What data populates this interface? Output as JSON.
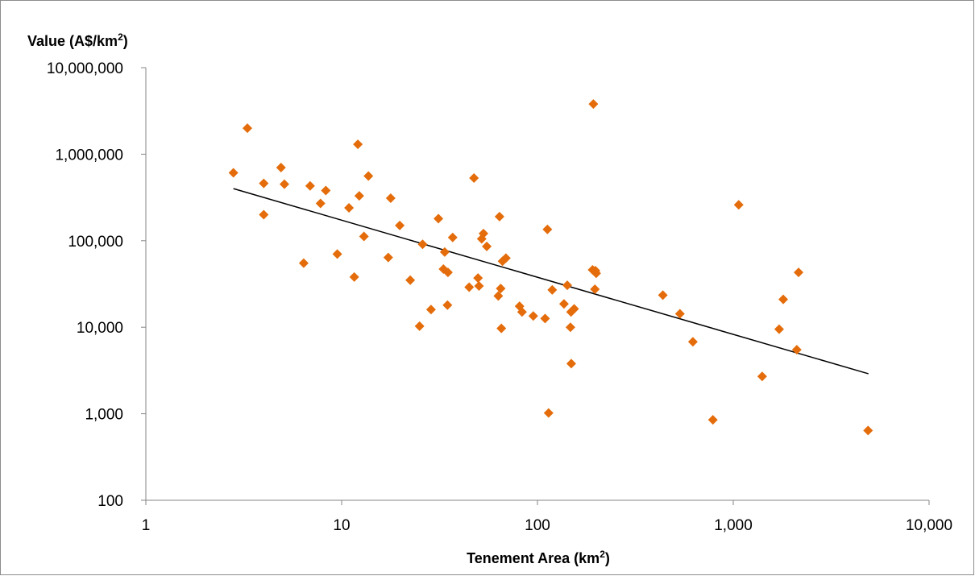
{
  "chart_data": {
    "type": "scatter",
    "title": "",
    "ylabel": "Value (A$/km",
    "ylabel_sup": "2",
    "ylabel_end": ")",
    "xlabel": "Tenement Area (km",
    "xlabel_sup": "2",
    "xlabel_end": ")",
    "x_scale": "log",
    "y_scale": "log",
    "xlim": [
      1,
      10000
    ],
    "ylim": [
      100,
      10000000
    ],
    "x_ticks": [
      {
        "value": 1,
        "label": "1"
      },
      {
        "value": 10,
        "label": "10"
      },
      {
        "value": 100,
        "label": "100"
      },
      {
        "value": 1000,
        "label": "1,000"
      },
      {
        "value": 10000,
        "label": "10,000"
      }
    ],
    "y_ticks": [
      {
        "value": 100,
        "label": "100"
      },
      {
        "value": 1000,
        "label": "1,000"
      },
      {
        "value": 10000,
        "label": "10,000"
      },
      {
        "value": 100000,
        "label": "100,000"
      },
      {
        "value": 1000000,
        "label": "1,000,000"
      },
      {
        "value": 10000000,
        "label": "10,000,000"
      }
    ],
    "grid": false,
    "legend": "none",
    "marker_color": "#E46C0A",
    "trendline_color": "#000000",
    "trendline": {
      "x": [
        2.8,
        4900
      ],
      "y": [
        400000,
        2900
      ]
    },
    "points": [
      [
        2.8,
        610000
      ],
      [
        3.3,
        2000000
      ],
      [
        4.0,
        460000
      ],
      [
        4.0,
        200000
      ],
      [
        4.9,
        700000
      ],
      [
        5.1,
        450000
      ],
      [
        6.4,
        55000
      ],
      [
        6.9,
        430000
      ],
      [
        7.8,
        270000
      ],
      [
        8.3,
        380000
      ],
      [
        9.5,
        70000
      ],
      [
        10.9,
        240000
      ],
      [
        11.6,
        38000
      ],
      [
        12.1,
        1300000
      ],
      [
        12.3,
        330000
      ],
      [
        13.0,
        112000
      ],
      [
        13.7,
        560000
      ],
      [
        17.3,
        64000
      ],
      [
        17.8,
        310000
      ],
      [
        19.8,
        150000
      ],
      [
        22.4,
        35000
      ],
      [
        25.0,
        10300
      ],
      [
        25.9,
        91000
      ],
      [
        28.6,
        16000
      ],
      [
        31.2,
        180000
      ],
      [
        33.1,
        47000
      ],
      [
        33.6,
        74000
      ],
      [
        34.7,
        18000
      ],
      [
        34.9,
        43000
      ],
      [
        36.9,
        109000
      ],
      [
        44.8,
        29000
      ],
      [
        47.4,
        530000
      ],
      [
        49.7,
        37000
      ],
      [
        50.3,
        30000
      ],
      [
        51.9,
        105000
      ],
      [
        53.0,
        121000
      ],
      [
        55.1,
        86000
      ],
      [
        63.1,
        23000
      ],
      [
        64.0,
        190000
      ],
      [
        64.9,
        28000
      ],
      [
        65.4,
        9700
      ],
      [
        66.3,
        58000
      ],
      [
        69.0,
        63000
      ],
      [
        81.0,
        17500
      ],
      [
        83.4,
        15000
      ],
      [
        95.2,
        13500
      ],
      [
        109.4,
        12600
      ],
      [
        112.4,
        135000
      ],
      [
        114.0,
        1020
      ],
      [
        119.0,
        27000
      ],
      [
        136.6,
        18600
      ],
      [
        142.0,
        30500
      ],
      [
        147.4,
        10000
      ],
      [
        148.4,
        15000
      ],
      [
        148.8,
        3800
      ],
      [
        154.0,
        16300
      ],
      [
        191.2,
        46000
      ],
      [
        193.0,
        3800000
      ],
      [
        196.5,
        27500
      ],
      [
        197.8,
        45000
      ],
      [
        199.5,
        42000
      ],
      [
        437.0,
        23500
      ],
      [
        534.0,
        14300
      ],
      [
        622.0,
        6800
      ],
      [
        787.0,
        850
      ],
      [
        1066.0,
        260000
      ],
      [
        1405.0,
        2700
      ],
      [
        1715.0,
        9500
      ],
      [
        1800.0,
        21000
      ],
      [
        2110.0,
        5500
      ],
      [
        2155.0,
        43000
      ],
      [
        4880.0,
        640
      ]
    ]
  }
}
